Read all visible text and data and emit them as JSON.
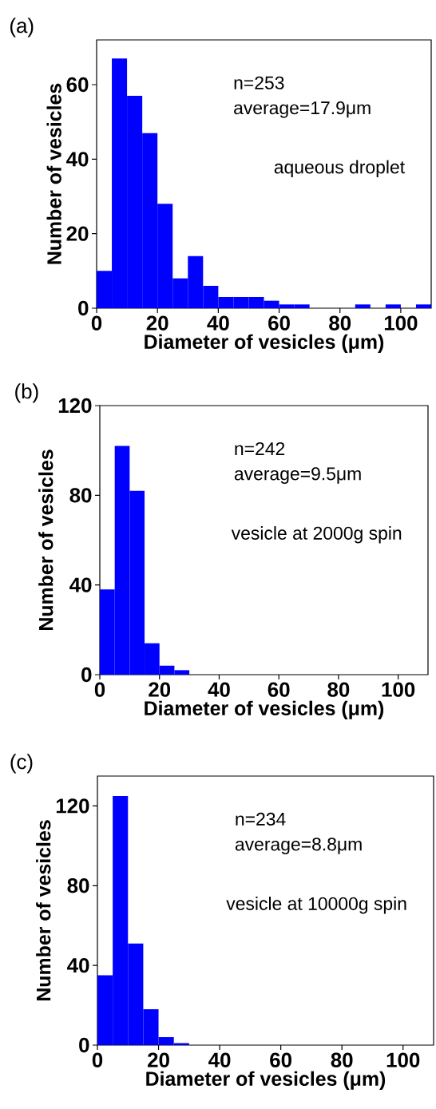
{
  "chart_data": [
    {
      "type": "histogram",
      "title": "(a)",
      "xlabel": "Diameter of vesicles (μm)",
      "ylabel": "Number of vesicles",
      "color": "#0000ff",
      "bins": [
        0,
        5,
        10,
        15,
        20,
        25,
        30,
        35,
        40,
        45,
        50,
        55,
        60,
        65,
        70,
        75,
        80,
        85,
        90,
        95,
        100,
        105,
        110
      ],
      "values": [
        10,
        67,
        57,
        47,
        28,
        8,
        14,
        6,
        3,
        3,
        3,
        2,
        1,
        1,
        0,
        0,
        0,
        1,
        0,
        1,
        0,
        1
      ],
      "xlim": [
        0,
        110
      ],
      "ylim": [
        0,
        72
      ],
      "xticks": [
        0,
        20,
        40,
        60,
        80,
        100
      ],
      "yticks": [
        0,
        20,
        40,
        60
      ],
      "annotations": [
        "n=253",
        "average=17.9μm",
        "aqueous droplet"
      ]
    },
    {
      "type": "histogram",
      "title": "(b)",
      "xlabel": "Diameter of vesicles (μm)",
      "ylabel": "Number of vesicles",
      "color": "#0000ff",
      "bins": [
        0,
        5,
        10,
        15,
        20,
        25,
        30
      ],
      "values": [
        38,
        102,
        82,
        14,
        4,
        2
      ],
      "xlim": [
        0,
        110
      ],
      "ylim": [
        0,
        120
      ],
      "xticks": [
        0,
        20,
        40,
        60,
        80,
        100
      ],
      "yticks": [
        0,
        40,
        80,
        120
      ],
      "annotations": [
        "n=242",
        "average=9.5μm",
        "vesicle at 2000g spin"
      ]
    },
    {
      "type": "histogram",
      "title": "(c)",
      "xlabel": "Diameter of vesicles (μm)",
      "ylabel": "Number of vesicles",
      "color": "#0000ff",
      "bins": [
        0,
        5,
        10,
        15,
        20,
        25,
        30
      ],
      "values": [
        35,
        125,
        51,
        18,
        4,
        1
      ],
      "xlim": [
        0,
        110
      ],
      "ylim": [
        0,
        135
      ],
      "xticks": [
        0,
        20,
        40,
        60,
        80,
        100
      ],
      "yticks": [
        0,
        40,
        80,
        120
      ],
      "annotations": [
        "n=234",
        "average=8.8μm",
        "vesicle at 10000g spin"
      ]
    }
  ]
}
